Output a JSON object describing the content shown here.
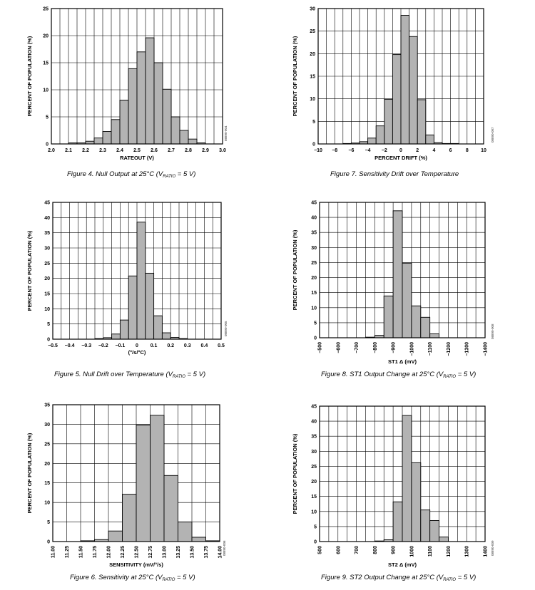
{
  "chart_data": [
    {
      "type": "bar",
      "figure": "fig4",
      "xlabel": "RATEOUT (V)",
      "ylabel": "PERCENT OF POPULATION (%)",
      "xlim": [
        2.0,
        3.0
      ],
      "ylim": [
        0,
        25
      ],
      "bin_width": 0.05,
      "xticks": [
        "2.0",
        "2.1",
        "2.2",
        "2.3",
        "2.4",
        "2.5",
        "2.6",
        "2.7",
        "2.8",
        "2.9",
        "3.0"
      ],
      "yticks": [
        "0",
        "5",
        "10",
        "15",
        "20",
        "25"
      ],
      "bins": [
        {
          "x": 2.1,
          "value": 0.2
        },
        {
          "x": 2.15,
          "value": 0.2
        },
        {
          "x": 2.2,
          "value": 0.5
        },
        {
          "x": 2.25,
          "value": 1.1
        },
        {
          "x": 2.3,
          "value": 2.3
        },
        {
          "x": 2.35,
          "value": 4.5
        },
        {
          "x": 2.4,
          "value": 8.1
        },
        {
          "x": 2.45,
          "value": 13.9
        },
        {
          "x": 2.5,
          "value": 17.0
        },
        {
          "x": 2.55,
          "value": 19.6
        },
        {
          "x": 2.6,
          "value": 15.0
        },
        {
          "x": 2.65,
          "value": 10.1
        },
        {
          "x": 2.7,
          "value": 5.0
        },
        {
          "x": 2.75,
          "value": 2.5
        },
        {
          "x": 2.8,
          "value": 0.9
        },
        {
          "x": 2.85,
          "value": 0.2
        }
      ],
      "code": "08890-004",
      "caption": {
        "prefix": "Figure 4. Null Output at 25°C (V",
        "sub": "RATIO",
        "suffix": " = 5 V)"
      }
    },
    {
      "type": "bar",
      "figure": "fig5",
      "xlabel": "(°/s/°C)",
      "ylabel": "PERCENT OF POPULATION (%)",
      "xlim": [
        -0.5,
        0.5
      ],
      "ylim": [
        0,
        45
      ],
      "bin_width": 0.05,
      "xticks": [
        "−0.5",
        "−0.4",
        "−0.3",
        "−0.2",
        "−0.1",
        "0",
        "0.1",
        "0.2",
        "0.3",
        "0.4",
        "0.5"
      ],
      "yticks": [
        "0",
        "5",
        "10",
        "15",
        "20",
        "25",
        "30",
        "35",
        "40",
        "45"
      ],
      "bins": [
        {
          "x": -0.25,
          "value": 0.2
        },
        {
          "x": -0.2,
          "value": 0.5
        },
        {
          "x": -0.15,
          "value": 1.7
        },
        {
          "x": -0.1,
          "value": 6.3
        },
        {
          "x": -0.05,
          "value": 20.8
        },
        {
          "x": 0.0,
          "value": 38.5
        },
        {
          "x": 0.05,
          "value": 21.7
        },
        {
          "x": 0.1,
          "value": 7.7
        },
        {
          "x": 0.15,
          "value": 2.1
        },
        {
          "x": 0.2,
          "value": 0.6
        },
        {
          "x": 0.25,
          "value": 0.2
        }
      ],
      "code": "08890-005",
      "caption": {
        "prefix": "Figure 5. Null Drift over Temperature (V",
        "sub": "RATIO",
        "suffix": " = 5 V)"
      }
    },
    {
      "type": "bar",
      "figure": "fig6",
      "xlabel": "SENSITIVITY (mV/°/s)",
      "ylabel": "PERCENT OF POPULATION (%)",
      "xlim": [
        11.0,
        14.0
      ],
      "ylim": [
        0,
        35
      ],
      "bin_width": 0.25,
      "xticks": [
        "11.00",
        "11.25",
        "11.50",
        "11.75",
        "12.00",
        "12.25",
        "12.50",
        "12.75",
        "13.00",
        "13.25",
        "13.50",
        "13.75",
        "14.00"
      ],
      "yticks": [
        "0",
        "5",
        "10",
        "15",
        "20",
        "25",
        "30",
        "35"
      ],
      "bins": [
        {
          "x": 11.5,
          "value": 0.2
        },
        {
          "x": 11.75,
          "value": 0.5
        },
        {
          "x": 12.0,
          "value": 2.7
        },
        {
          "x": 12.25,
          "value": 12.1
        },
        {
          "x": 12.5,
          "value": 29.8
        },
        {
          "x": 12.75,
          "value": 32.3
        },
        {
          "x": 13.0,
          "value": 16.9
        },
        {
          "x": 13.25,
          "value": 5.0
        },
        {
          "x": 13.5,
          "value": 1.1
        },
        {
          "x": 13.75,
          "value": 0.2
        }
      ],
      "code": "08890-006",
      "caption": {
        "prefix": "Figure 6. Sensitivity at 25°C (V",
        "sub": "RATIO",
        "suffix": " = 5 V)"
      }
    },
    {
      "type": "bar",
      "figure": "fig7",
      "xlabel": "PERCENT DRIFT (%)",
      "ylabel": "PERCENT OF POPULATION (%)",
      "xlim": [
        -10,
        10
      ],
      "ylim": [
        0,
        30
      ],
      "bin_width": 1,
      "xticks": [
        "−10",
        "−8",
        "−6",
        "−4",
        "−2",
        "0",
        "2",
        "4",
        "6",
        "8",
        "10"
      ],
      "yticks": [
        "0",
        "5",
        "10",
        "15",
        "20",
        "25",
        "30"
      ],
      "bins": [
        {
          "x": -7,
          "value": 0.1
        },
        {
          "x": -6,
          "value": 0.2
        },
        {
          "x": -5,
          "value": 0.5
        },
        {
          "x": -4,
          "value": 1.3
        },
        {
          "x": -3,
          "value": 4.0
        },
        {
          "x": -2,
          "value": 9.9
        },
        {
          "x": -1,
          "value": 19.8
        },
        {
          "x": 0,
          "value": 28.5
        },
        {
          "x": 1,
          "value": 23.8
        },
        {
          "x": 2,
          "value": 9.8
        },
        {
          "x": 3,
          "value": 2.0
        },
        {
          "x": 4,
          "value": 0.3
        },
        {
          "x": 5,
          "value": 0.1
        },
        {
          "x": 6,
          "value": 0.1
        }
      ],
      "code": "08890-007",
      "caption": {
        "prefix": "Figure 7. Sensitivity Drift over Temperature",
        "sub": "",
        "suffix": ""
      }
    },
    {
      "type": "bar",
      "figure": "fig8",
      "xlabel": "ST1 Δ (mV)",
      "ylabel": "PERCENT OF POPULATION (%)",
      "xlim": [
        -500,
        -1400
      ],
      "ylim": [
        0,
        45
      ],
      "bin_width": 50,
      "xticks": [
        "−500",
        "−600",
        "−700",
        "−800",
        "−900",
        "−1000",
        "−1100",
        "−1200",
        "−1300",
        "−1400"
      ],
      "yticks": [
        "0",
        "5",
        "10",
        "15",
        "20",
        "25",
        "30",
        "35",
        "40",
        "45"
      ],
      "bins": [
        {
          "x": -750,
          "value": 0.2
        },
        {
          "x": -800,
          "value": 0.8
        },
        {
          "x": -850,
          "value": 13.9
        },
        {
          "x": -900,
          "value": 42.2
        },
        {
          "x": -950,
          "value": 24.8
        },
        {
          "x": -1000,
          "value": 10.6
        },
        {
          "x": -1050,
          "value": 6.8
        },
        {
          "x": -1100,
          "value": 1.3
        }
      ],
      "code": "08890-008",
      "caption": {
        "prefix": "Figure 8. ST1 Output Change at 25°C (V",
        "sub": "RATIO",
        "suffix": " = 5 V)"
      }
    },
    {
      "type": "bar",
      "figure": "fig9",
      "xlabel": "ST2 Δ (mV)",
      "ylabel": "PERCENT OF POPULATION (%)",
      "xlim": [
        500,
        1400
      ],
      "ylim": [
        0,
        45
      ],
      "bin_width": 50,
      "xticks": [
        "500",
        "600",
        "700",
        "800",
        "900",
        "1000",
        "1100",
        "1200",
        "1300",
        "1400"
      ],
      "yticks": [
        "0",
        "5",
        "10",
        "15",
        "20",
        "25",
        "30",
        "35",
        "40",
        "45"
      ],
      "bins": [
        {
          "x": 800,
          "value": 0.2
        },
        {
          "x": 850,
          "value": 0.6
        },
        {
          "x": 900,
          "value": 13.2
        },
        {
          "x": 950,
          "value": 41.9
        },
        {
          "x": 1000,
          "value": 26.2
        },
        {
          "x": 1050,
          "value": 10.5
        },
        {
          "x": 1100,
          "value": 7.0
        },
        {
          "x": 1150,
          "value": 1.5
        }
      ],
      "code": "08890-009",
      "caption": {
        "prefix": "Figure 9. ST2 Output Change at 25°C (V",
        "sub": "RATIO",
        "suffix": " = 5 V)"
      }
    }
  ]
}
